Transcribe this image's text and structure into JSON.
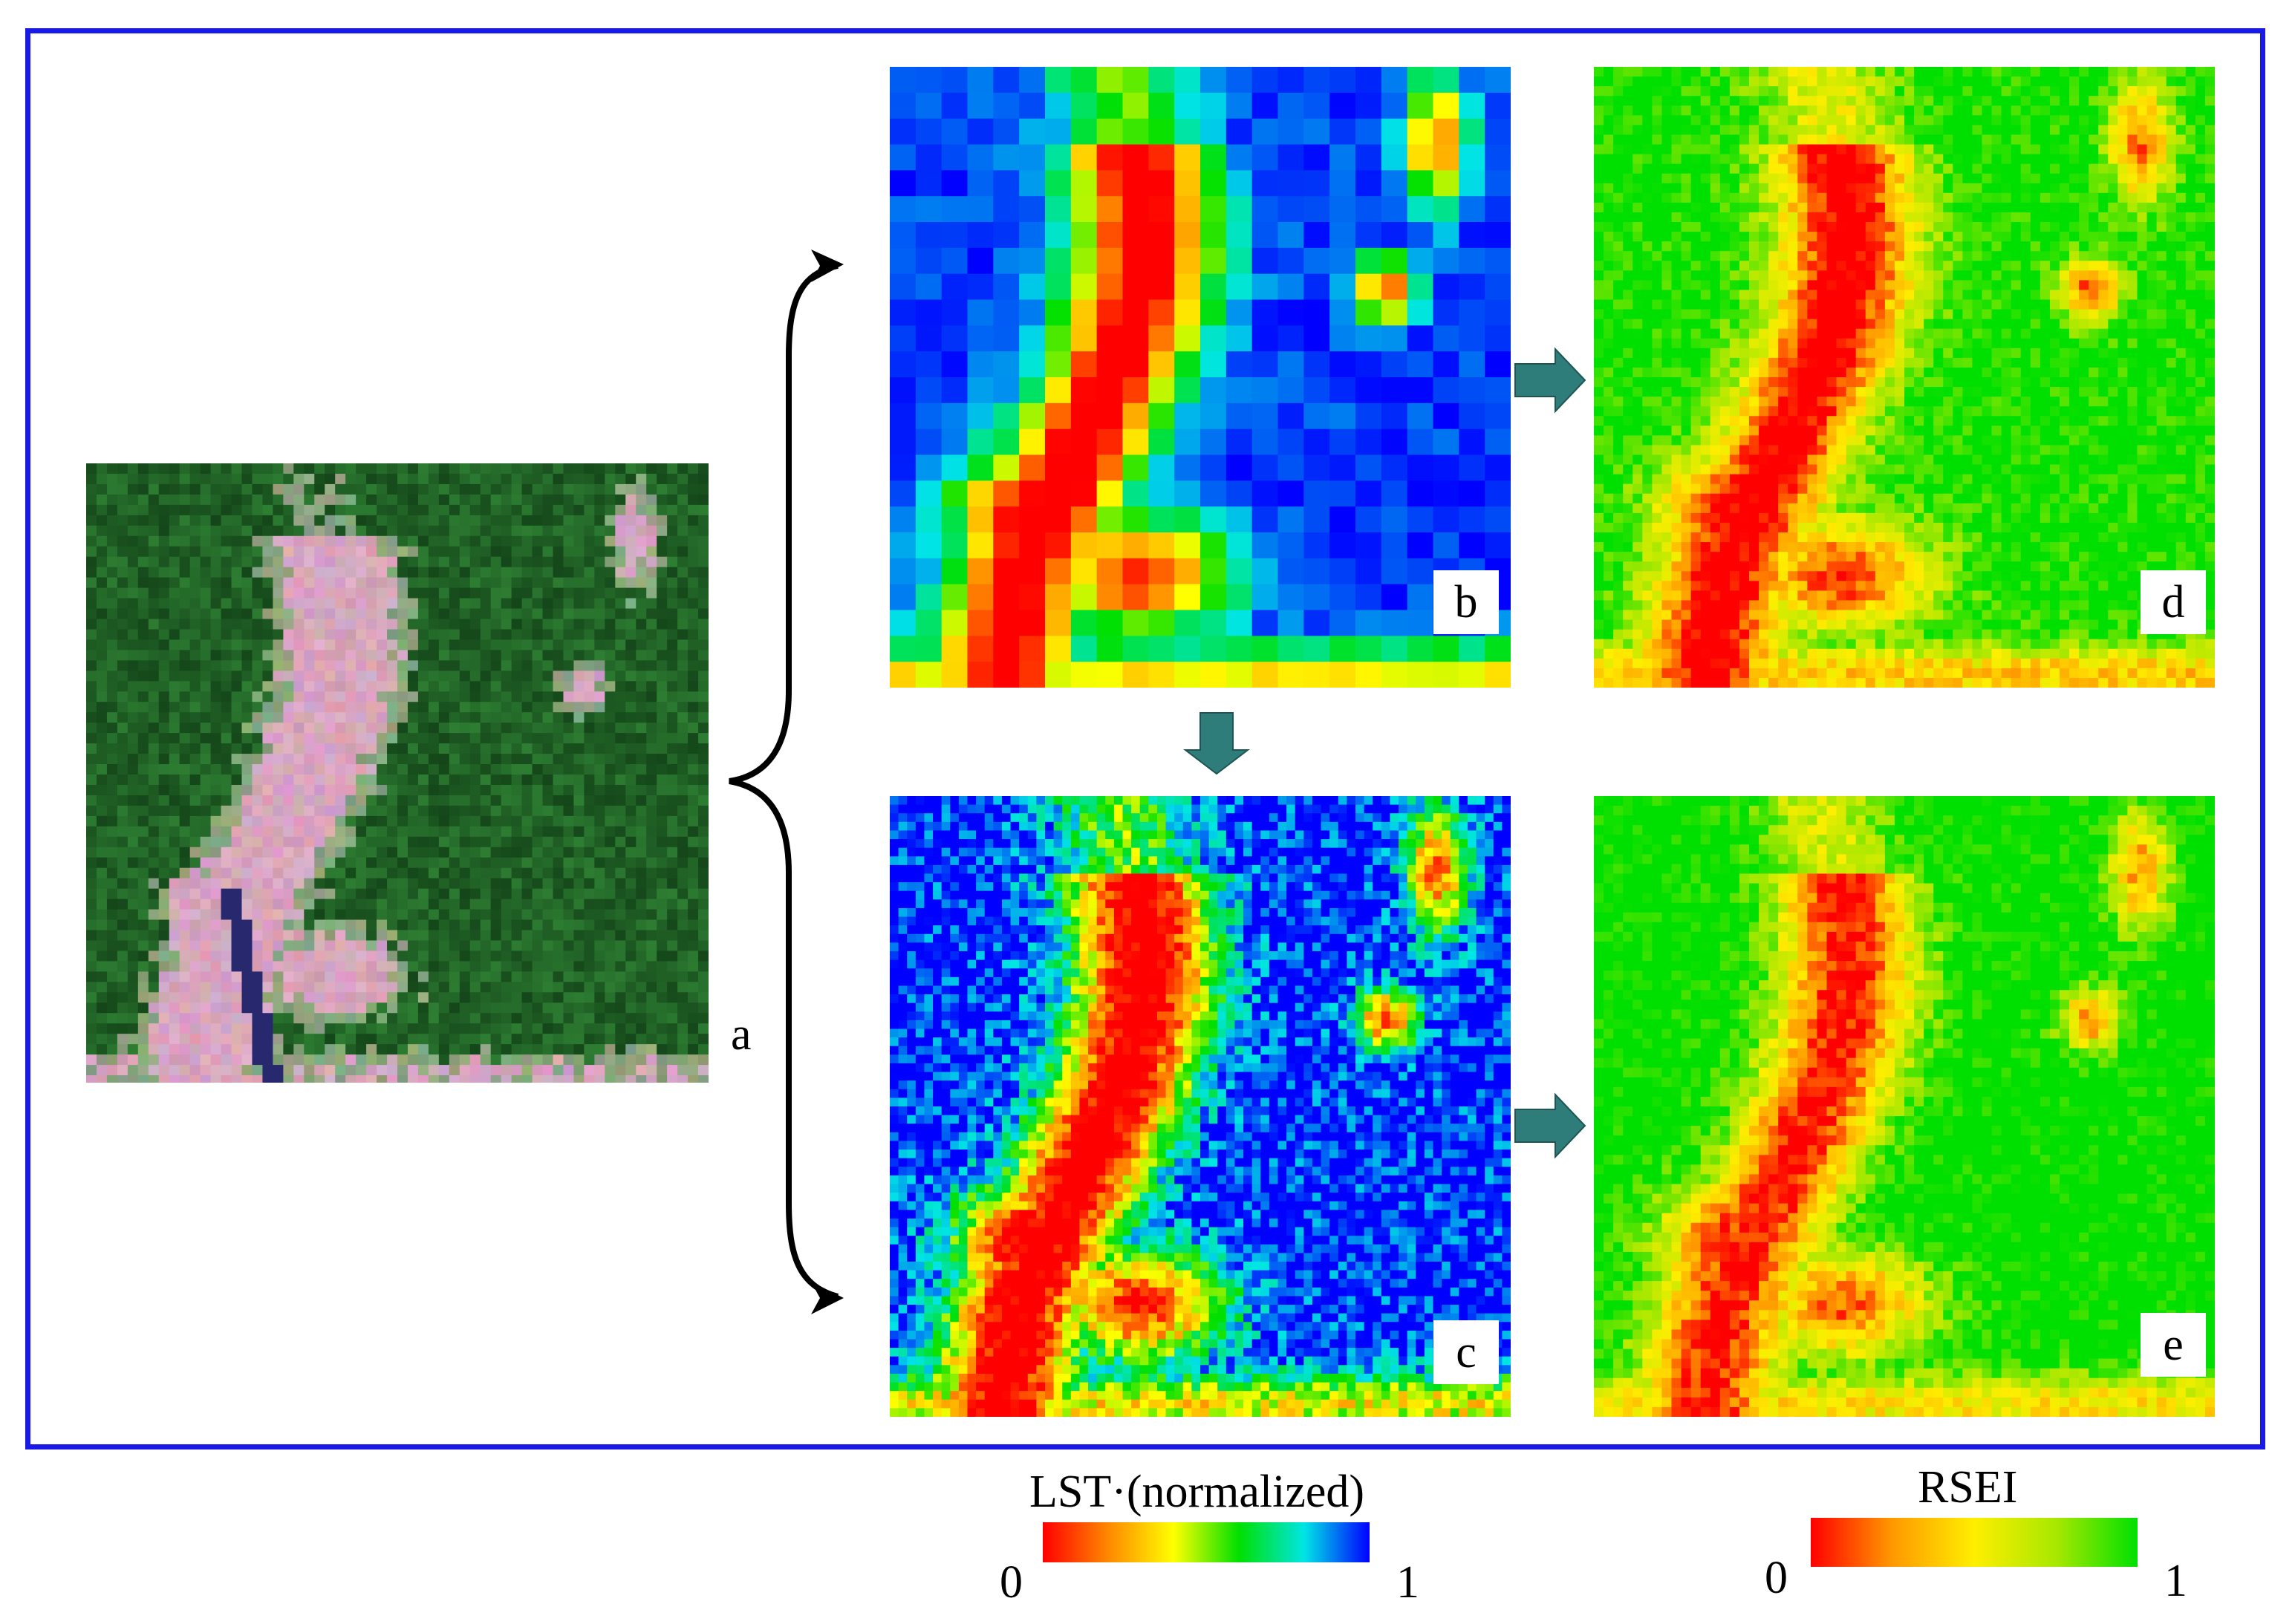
{
  "panels": {
    "a": {
      "label": "a"
    },
    "b": {
      "label": "b"
    },
    "c": {
      "label": "c"
    },
    "d": {
      "label": "d"
    },
    "e": {
      "label": "e"
    }
  },
  "colorbars": {
    "lst": {
      "title": "LST·(normalized)",
      "min_label": "0",
      "max_label": "1",
      "colors": [
        "#ff0000",
        "#ff8800",
        "#ffff00",
        "#00e000",
        "#00e5e5",
        "#0000ff"
      ]
    },
    "rsei": {
      "title": "RSEI",
      "min_label": "0",
      "max_label": "1",
      "colors": [
        "#ff0000",
        "#ff9900",
        "#ffee00",
        "#a8e800",
        "#00e000"
      ]
    }
  }
}
